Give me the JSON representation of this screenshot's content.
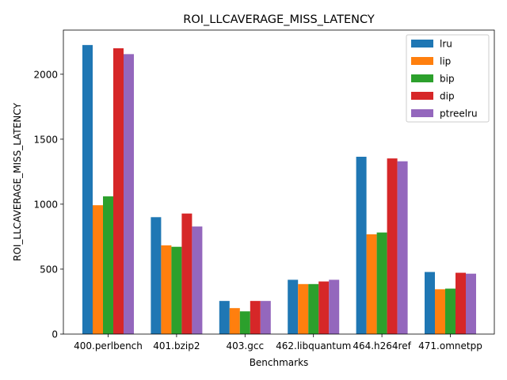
{
  "chart_data": {
    "type": "bar",
    "title": "ROI_LLCAVERAGE_MISS_LATENCY",
    "xlabel": "Benchmarks",
    "ylabel": "ROI_LLCAVERAGE_MISS_LATENCY",
    "ylim": [
      0,
      2340
    ],
    "yticks": [
      0,
      500,
      1000,
      1500,
      2000
    ],
    "grid": false,
    "legend_position": "top-right",
    "categories": [
      "400.perlbench",
      "401.bzip2",
      "403.gcc",
      "462.libquantum",
      "464.h264ref",
      "471.omnetpp"
    ],
    "series": [
      {
        "name": "lru",
        "color": "#1f77b4",
        "values": [
          2225,
          900,
          255,
          418,
          1365,
          478
        ]
      },
      {
        "name": "lip",
        "color": "#ff7f0e",
        "values": [
          992,
          683,
          200,
          385,
          768,
          345
        ]
      },
      {
        "name": "bip",
        "color": "#2ca02c",
        "values": [
          1060,
          672,
          175,
          385,
          782,
          350
        ]
      },
      {
        "name": "dip",
        "color": "#d62728",
        "values": [
          2200,
          928,
          255,
          405,
          1352,
          472
        ]
      },
      {
        "name": "ptreelru",
        "color": "#9467bd",
        "values": [
          2155,
          828,
          255,
          418,
          1330,
          465
        ]
      }
    ]
  }
}
